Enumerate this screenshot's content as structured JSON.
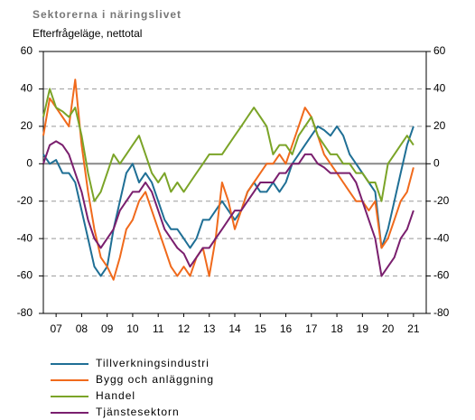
{
  "chart_data": {
    "type": "line",
    "title": "Sektorerna i näringslivet",
    "subtitle": "Efterfrågeläge, nettotal",
    "x": [
      2007,
      2007.25,
      2007.5,
      2007.75,
      2008,
      2008.25,
      2008.5,
      2008.75,
      2009,
      2009.25,
      2009.5,
      2009.75,
      2010,
      2010.25,
      2010.5,
      2010.75,
      2011,
      2011.25,
      2011.5,
      2011.75,
      2012,
      2012.25,
      2012.5,
      2012.75,
      2013,
      2013.25,
      2013.5,
      2013.75,
      2014,
      2014.25,
      2014.5,
      2014.75,
      2015,
      2015.25,
      2015.5,
      2015.75,
      2016,
      2016.25,
      2016.5,
      2016.75,
      2017,
      2017.25,
      2017.5,
      2017.75,
      2018,
      2018.25,
      2018.5,
      2018.75,
      2019,
      2019.25,
      2019.5,
      2019.75,
      2020,
      2020.25,
      2020.5,
      2020.75,
      2021,
      2021.25,
      2021.5
    ],
    "series": [
      {
        "name": "Tillverkningsindustri",
        "color": "#1f6f95",
        "values": [
          5,
          0,
          2,
          -5,
          -5,
          -10,
          -25,
          -40,
          -55,
          -60,
          -55,
          -35,
          -20,
          -5,
          0,
          -10,
          -5,
          -10,
          -20,
          -30,
          -35,
          -35,
          -40,
          -45,
          -40,
          -30,
          -30,
          -25,
          -20,
          -25,
          -30,
          -25,
          -15,
          -10,
          -15,
          -15,
          -10,
          -15,
          -10,
          0,
          5,
          10,
          15,
          20,
          18,
          15,
          20,
          15,
          5,
          0,
          -5,
          -10,
          -15,
          -45,
          -35,
          -20,
          -5,
          10,
          20
        ]
      },
      {
        "name": "Bygg och anläggning",
        "color": "#f06a1c",
        "values": [
          15,
          35,
          30,
          25,
          20,
          45,
          10,
          -15,
          -35,
          -50,
          -55,
          -62,
          -50,
          -35,
          -30,
          -20,
          -15,
          -25,
          -35,
          -45,
          -55,
          -60,
          -55,
          -60,
          -50,
          -45,
          -60,
          -40,
          -10,
          -20,
          -35,
          -25,
          -15,
          -10,
          -5,
          0,
          0,
          5,
          0,
          10,
          20,
          30,
          25,
          15,
          5,
          0,
          -5,
          -10,
          -15,
          -20,
          -20,
          -25,
          -20,
          -45,
          -40,
          -30,
          -20,
          -15,
          -2
        ]
      },
      {
        "name": "Handel",
        "color": "#7ba428",
        "values": [
          25,
          40,
          30,
          28,
          25,
          30,
          15,
          -5,
          -20,
          -15,
          -5,
          5,
          0,
          5,
          10,
          15,
          5,
          -5,
          -10,
          -5,
          -15,
          -10,
          -15,
          -10,
          -5,
          0,
          5,
          5,
          5,
          10,
          15,
          20,
          25,
          30,
          25,
          20,
          5,
          10,
          10,
          5,
          15,
          20,
          25,
          15,
          10,
          5,
          5,
          0,
          0,
          -5,
          -5,
          -10,
          -10,
          -20,
          0,
          5,
          10,
          15,
          10
        ]
      },
      {
        "name": "Tjänstesektorn",
        "color": "#7a1f6e",
        "values": [
          0,
          10,
          12,
          10,
          5,
          -5,
          -15,
          -30,
          -40,
          -45,
          -40,
          -35,
          -25,
          -20,
          -15,
          -15,
          -10,
          -15,
          -25,
          -35,
          -40,
          -45,
          -48,
          -55,
          -50,
          -45,
          -45,
          -40,
          -35,
          -30,
          -25,
          -25,
          -20,
          -15,
          -10,
          -10,
          -10,
          -5,
          -5,
          0,
          0,
          5,
          5,
          0,
          -2,
          -5,
          -5,
          -5,
          -5,
          -10,
          -20,
          -30,
          -40,
          -60,
          -55,
          -50,
          -40,
          -35,
          -25
        ]
      }
    ],
    "xlim": [
      2007,
      2022
    ],
    "xticks": [
      {
        "value": 2007.5,
        "label": "07"
      },
      {
        "value": 2008.5,
        "label": "08"
      },
      {
        "value": 2009.5,
        "label": "09"
      },
      {
        "value": 2010.5,
        "label": "10"
      },
      {
        "value": 2011.5,
        "label": "11"
      },
      {
        "value": 2012.5,
        "label": "12"
      },
      {
        "value": 2013.5,
        "label": "13"
      },
      {
        "value": 2014.5,
        "label": "14"
      },
      {
        "value": 2015.5,
        "label": "15"
      },
      {
        "value": 2016.5,
        "label": "16"
      },
      {
        "value": 2017.5,
        "label": "17"
      },
      {
        "value": 2018.5,
        "label": "18"
      },
      {
        "value": 2019.5,
        "label": "19"
      },
      {
        "value": 2020.5,
        "label": "20"
      },
      {
        "value": 2021.5,
        "label": "21"
      }
    ],
    "ylim": [
      -80,
      60
    ],
    "yticks": [
      -80,
      -60,
      -40,
      -20,
      0,
      20,
      40,
      60
    ],
    "y2lim": [
      -80,
      60
    ],
    "y2ticks": [
      -80,
      -60,
      -40,
      -20,
      0,
      20,
      40,
      60
    ],
    "grid": true
  }
}
